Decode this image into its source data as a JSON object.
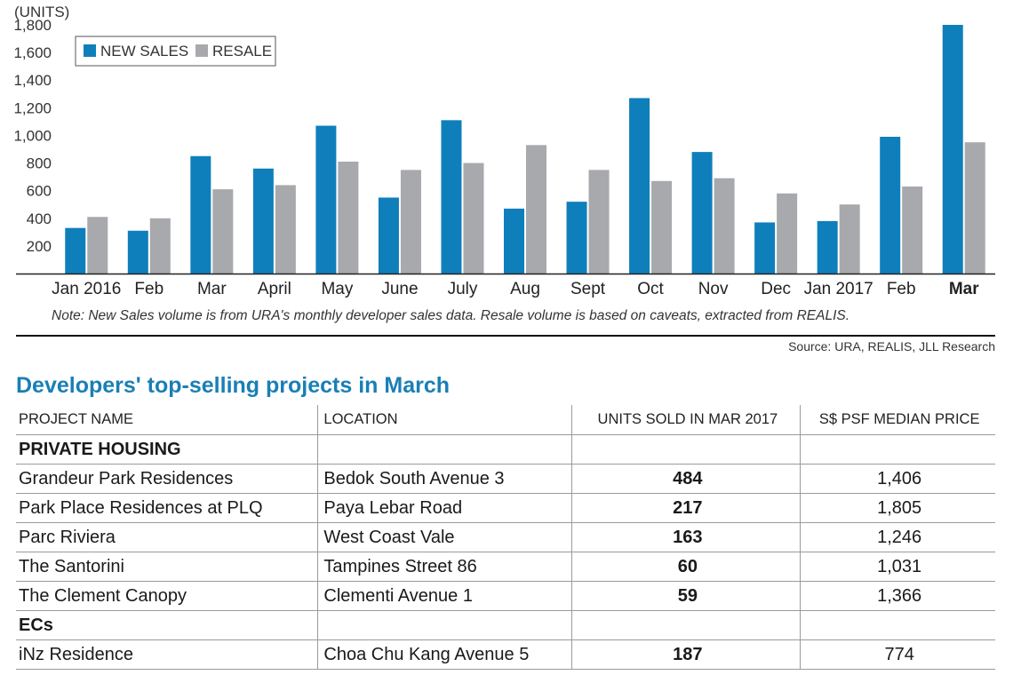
{
  "chart_data": {
    "type": "bar",
    "unit_label": "(UNITS)",
    "categories": [
      "Jan 2016",
      "Feb",
      "Mar",
      "April",
      "May",
      "June",
      "July",
      "Aug",
      "Sept",
      "Oct",
      "Nov",
      "Dec",
      "Jan 2017",
      "Feb",
      "Mar"
    ],
    "bold_category_index": 14,
    "series": [
      {
        "name": "NEW SALES",
        "color": "#0f7fbb",
        "values": [
          330,
          310,
          850,
          760,
          1070,
          550,
          1110,
          470,
          520,
          1270,
          880,
          370,
          380,
          990,
          1800
        ]
      },
      {
        "name": "RESALE",
        "color": "#a7a9ac",
        "values": [
          410,
          400,
          610,
          640,
          810,
          750,
          800,
          930,
          750,
          670,
          690,
          580,
          500,
          630,
          950
        ]
      }
    ],
    "ylim": [
      0,
      1800
    ],
    "yticks": [
      200,
      400,
      600,
      800,
      1000,
      1200,
      1400,
      1600,
      1800
    ],
    "ytick_labels": [
      "200",
      "400",
      "600",
      "800",
      "1,000",
      "1,200",
      "1,400",
      "1,600",
      "1,800"
    ],
    "legend_position": "top-left",
    "grid": false
  },
  "note": "Note: New Sales volume is from URA's monthly developer sales data. Resale volume is based on caveats, extracted from REALIS.",
  "source": "Source: URA, REALIS, JLL Research",
  "table": {
    "title": "Developers' top-selling projects in March",
    "headers": [
      "PROJECT NAME",
      "LOCATION",
      "UNITS SOLD IN MAR 2017",
      "S$ PSF MEDIAN PRICE"
    ],
    "sections": [
      {
        "label": "PRIVATE HOUSING",
        "rows": [
          {
            "project": "Grandeur Park Residences",
            "location": "Bedok South Avenue 3",
            "units": "484",
            "price": "1,406"
          },
          {
            "project": "Park Place Residences at PLQ",
            "location": "Paya Lebar Road",
            "units": "217",
            "price": "1,805"
          },
          {
            "project": "Parc Riviera",
            "location": "West Coast Vale",
            "units": "163",
            "price": "1,246"
          },
          {
            "project": "The Santorini",
            "location": "Tampines Street 86",
            "units": "60",
            "price": "1,031"
          },
          {
            "project": "The Clement Canopy",
            "location": "Clementi Avenue 1",
            "units": "59",
            "price": "1,366"
          }
        ]
      },
      {
        "label": "ECs",
        "rows": [
          {
            "project": "iNz Residence",
            "location": "Choa Chu Kang Avenue 5",
            "units": "187",
            "price": "774"
          }
        ]
      }
    ]
  }
}
